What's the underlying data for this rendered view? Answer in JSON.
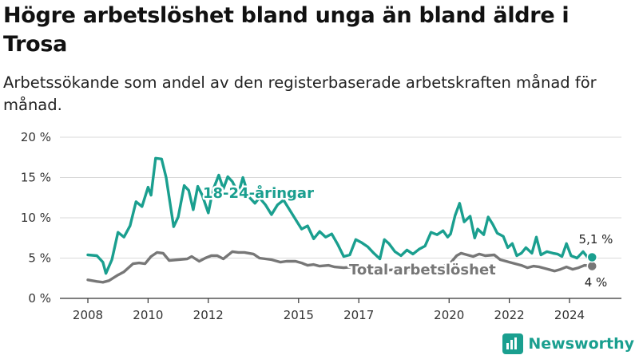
{
  "title": "Högre arbetslöshet bland unga än bland äldre i Trosa",
  "subtitle": "Arbetssökande som andel av den registerbaserade arbetskraften månad för månad.",
  "brand": {
    "name": "Newsworthy",
    "icon": "newsworthy-logo-icon"
  },
  "colors": {
    "youth": "#1a9f8f",
    "total": "#777777",
    "grid": "#d9d9d9",
    "axis": "#333333"
  },
  "chart_data": {
    "type": "line",
    "ylim": [
      0,
      20
    ],
    "y_ticks": [
      0,
      5,
      10,
      15,
      20
    ],
    "y_tick_labels": [
      "0 %",
      "5 %",
      "10 %",
      "15 %",
      "20 %"
    ],
    "x_ticks": [
      2008,
      2010,
      2012,
      2015,
      2017,
      2020,
      2022,
      2024
    ],
    "x_tick_labels": [
      "2008",
      "2010",
      "2012",
      "2015",
      "2017",
      "2020",
      "2022",
      "2024"
    ],
    "grid": true,
    "series": [
      {
        "name": "18-24-åringar",
        "end_label": "5,1 %",
        "points": [
          [
            2008.0,
            5.4
          ],
          [
            2008.3,
            5.3
          ],
          [
            2008.5,
            4.5
          ],
          [
            2008.6,
            3.1
          ],
          [
            2008.8,
            4.8
          ],
          [
            2009.0,
            8.2
          ],
          [
            2009.2,
            7.6
          ],
          [
            2009.4,
            9.0
          ],
          [
            2009.6,
            12.0
          ],
          [
            2009.8,
            11.4
          ],
          [
            2010.0,
            13.8
          ],
          [
            2010.1,
            12.8
          ],
          [
            2010.25,
            17.4
          ],
          [
            2010.45,
            17.3
          ],
          [
            2010.6,
            15.0
          ],
          [
            2010.85,
            8.9
          ],
          [
            2011.0,
            10.1
          ],
          [
            2011.2,
            14.0
          ],
          [
            2011.35,
            13.4
          ],
          [
            2011.5,
            11.0
          ],
          [
            2011.65,
            13.9
          ],
          [
            2011.8,
            12.8
          ],
          [
            2012.0,
            10.6
          ],
          [
            2012.15,
            13.4
          ],
          [
            2012.35,
            15.3
          ],
          [
            2012.5,
            13.6
          ],
          [
            2012.65,
            15.1
          ],
          [
            2012.8,
            14.5
          ],
          [
            2013.0,
            13.0
          ],
          [
            2013.15,
            15.0
          ],
          [
            2013.35,
            12.6
          ],
          [
            2013.55,
            11.8
          ],
          [
            2013.7,
            12.5
          ],
          [
            2013.9,
            11.6
          ],
          [
            2014.1,
            10.4
          ],
          [
            2014.3,
            11.6
          ],
          [
            2014.5,
            12.2
          ],
          [
            2014.7,
            11.0
          ],
          [
            2014.9,
            9.8
          ],
          [
            2015.1,
            8.6
          ],
          [
            2015.3,
            9.0
          ],
          [
            2015.5,
            7.4
          ],
          [
            2015.7,
            8.3
          ],
          [
            2015.9,
            7.6
          ],
          [
            2016.1,
            8.0
          ],
          [
            2016.3,
            6.7
          ],
          [
            2016.5,
            5.2
          ],
          [
            2016.7,
            5.4
          ],
          [
            2016.9,
            7.3
          ],
          [
            2017.1,
            6.9
          ],
          [
            2017.3,
            6.4
          ],
          [
            2017.5,
            5.6
          ],
          [
            2017.7,
            4.9
          ],
          [
            2017.85,
            7.3
          ],
          [
            2018.0,
            6.8
          ],
          [
            2018.2,
            5.8
          ],
          [
            2018.4,
            5.3
          ],
          [
            2018.6,
            6.0
          ],
          [
            2018.8,
            5.5
          ],
          [
            2019.0,
            6.1
          ],
          [
            2019.2,
            6.5
          ],
          [
            2019.4,
            8.2
          ],
          [
            2019.6,
            7.9
          ],
          [
            2019.8,
            8.4
          ],
          [
            2019.95,
            7.6
          ],
          [
            2020.05,
            8.0
          ],
          [
            2020.2,
            10.3
          ],
          [
            2020.35,
            11.8
          ],
          [
            2020.5,
            9.5
          ],
          [
            2020.7,
            10.2
          ],
          [
            2020.85,
            7.5
          ],
          [
            2020.95,
            8.6
          ],
          [
            2021.15,
            7.9
          ],
          [
            2021.3,
            10.1
          ],
          [
            2021.45,
            9.2
          ],
          [
            2021.6,
            8.1
          ],
          [
            2021.8,
            7.7
          ],
          [
            2021.95,
            6.3
          ],
          [
            2022.1,
            6.8
          ],
          [
            2022.25,
            5.3
          ],
          [
            2022.4,
            5.6
          ],
          [
            2022.55,
            6.3
          ],
          [
            2022.75,
            5.6
          ],
          [
            2022.9,
            7.6
          ],
          [
            2023.05,
            5.4
          ],
          [
            2023.25,
            5.8
          ],
          [
            2023.45,
            5.6
          ],
          [
            2023.6,
            5.5
          ],
          [
            2023.75,
            5.2
          ],
          [
            2023.9,
            6.8
          ],
          [
            2024.05,
            5.3
          ],
          [
            2024.25,
            5.0
          ],
          [
            2024.45,
            5.8
          ],
          [
            2024.6,
            5.1
          ],
          [
            2024.75,
            5.1
          ]
        ]
      },
      {
        "name": "Total arbetslöshet",
        "end_label": "4 %",
        "points": [
          [
            2008.0,
            2.3
          ],
          [
            2008.3,
            2.1
          ],
          [
            2008.5,
            2.0
          ],
          [
            2008.7,
            2.2
          ],
          [
            2009.0,
            2.9
          ],
          [
            2009.2,
            3.3
          ],
          [
            2009.5,
            4.3
          ],
          [
            2009.7,
            4.4
          ],
          [
            2009.9,
            4.3
          ],
          [
            2010.1,
            5.2
          ],
          [
            2010.3,
            5.7
          ],
          [
            2010.5,
            5.6
          ],
          [
            2010.7,
            4.7
          ],
          [
            2011.0,
            4.8
          ],
          [
            2011.3,
            4.9
          ],
          [
            2011.45,
            5.2
          ],
          [
            2011.7,
            4.6
          ],
          [
            2011.9,
            5.0
          ],
          [
            2012.1,
            5.3
          ],
          [
            2012.3,
            5.3
          ],
          [
            2012.5,
            4.9
          ],
          [
            2012.8,
            5.8
          ],
          [
            2013.0,
            5.7
          ],
          [
            2013.2,
            5.7
          ],
          [
            2013.5,
            5.5
          ],
          [
            2013.7,
            5.0
          ],
          [
            2013.9,
            4.9
          ],
          [
            2014.1,
            4.8
          ],
          [
            2014.4,
            4.5
          ],
          [
            2014.6,
            4.6
          ],
          [
            2014.9,
            4.6
          ],
          [
            2015.1,
            4.4
          ],
          [
            2015.3,
            4.1
          ],
          [
            2015.5,
            4.2
          ],
          [
            2015.7,
            4.0
          ],
          [
            2016.0,
            4.1
          ],
          [
            2016.2,
            3.9
          ],
          [
            2016.5,
            3.8
          ],
          [
            2016.8,
            3.9
          ],
          [
            2017.0,
            3.6
          ],
          [
            2017.3,
            3.5
          ],
          [
            2017.6,
            3.7
          ],
          [
            2018.0,
            3.5
          ],
          [
            2018.3,
            3.6
          ],
          [
            2018.6,
            3.5
          ],
          [
            2018.9,
            3.7
          ],
          [
            2019.2,
            3.8
          ],
          [
            2019.5,
            3.8
          ],
          [
            2019.8,
            4.0
          ],
          [
            2020.0,
            4.2
          ],
          [
            2020.25,
            5.3
          ],
          [
            2020.4,
            5.6
          ],
          [
            2020.6,
            5.4
          ],
          [
            2020.8,
            5.2
          ],
          [
            2021.0,
            5.5
          ],
          [
            2021.2,
            5.3
          ],
          [
            2021.5,
            5.4
          ],
          [
            2021.7,
            4.8
          ],
          [
            2022.0,
            4.5
          ],
          [
            2022.2,
            4.3
          ],
          [
            2022.4,
            4.1
          ],
          [
            2022.6,
            3.8
          ],
          [
            2022.8,
            4.0
          ],
          [
            2023.0,
            3.9
          ],
          [
            2023.2,
            3.7
          ],
          [
            2023.5,
            3.4
          ],
          [
            2023.7,
            3.6
          ],
          [
            2023.9,
            3.9
          ],
          [
            2024.1,
            3.6
          ],
          [
            2024.3,
            3.8
          ],
          [
            2024.5,
            4.1
          ],
          [
            2024.75,
            4.0
          ]
        ]
      }
    ]
  }
}
